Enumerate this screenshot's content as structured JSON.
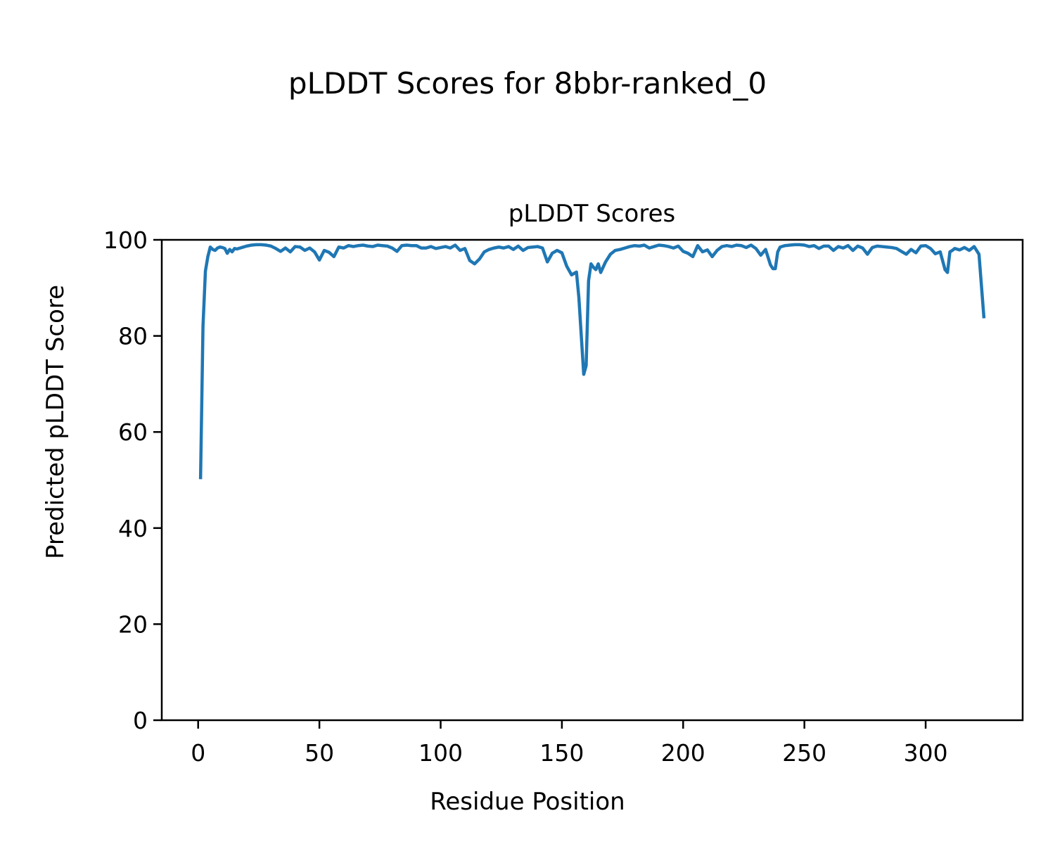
{
  "figure": {
    "suptitle": "pLDDT Scores for 8bbr-ranked_0"
  },
  "chart_data": {
    "type": "line",
    "title": "pLDDT Scores",
    "xlabel": "Residue Position",
    "ylabel": "Predicted pLDDT Score",
    "xlim": [
      -15,
      340
    ],
    "ylim": [
      0,
      100
    ],
    "xticks": [
      0,
      50,
      100,
      150,
      200,
      250,
      300
    ],
    "yticks": [
      0,
      20,
      40,
      60,
      80,
      100
    ],
    "grid": false,
    "line_color": "#1f77b4",
    "series": [
      {
        "x": [
          1,
          2,
          3,
          4,
          5,
          6,
          7,
          8,
          9,
          10,
          11,
          12,
          13,
          14,
          15,
          16,
          18,
          20,
          22,
          24,
          26,
          28,
          30,
          32,
          34,
          36,
          38,
          40,
          42,
          44,
          46,
          48,
          50,
          52,
          54,
          56,
          58,
          60,
          62,
          64,
          66,
          68,
          70,
          72,
          74,
          76,
          78,
          80,
          82,
          84,
          86,
          88,
          90,
          92,
          94,
          96,
          98,
          100,
          102,
          104,
          106,
          108,
          110,
          112,
          114,
          116,
          118,
          120,
          122,
          124,
          126,
          128,
          130,
          132,
          134,
          136,
          138,
          140,
          142,
          144,
          146,
          148,
          150,
          152,
          154,
          156,
          157,
          158,
          159,
          160,
          161,
          162,
          163,
          164,
          165,
          166,
          168,
          170,
          172,
          174,
          176,
          178,
          180,
          182,
          184,
          186,
          188,
          190,
          192,
          194,
          196,
          198,
          200,
          202,
          204,
          206,
          208,
          210,
          212,
          214,
          216,
          218,
          220,
          222,
          224,
          226,
          228,
          230,
          232,
          234,
          236,
          237,
          238,
          239,
          240,
          242,
          244,
          246,
          248,
          250,
          252,
          254,
          256,
          258,
          260,
          262,
          264,
          266,
          268,
          270,
          272,
          274,
          276,
          278,
          280,
          282,
          284,
          286,
          288,
          290,
          292,
          294,
          296,
          298,
          300,
          302,
          304,
          306,
          308,
          309,
          310,
          311,
          312,
          314,
          316,
          318,
          320,
          322,
          324
        ],
        "y": [
          50.5,
          82,
          93.5,
          96.5,
          98.5,
          98,
          97.8,
          98.3,
          98.5,
          98.4,
          98.2,
          97.2,
          98,
          97.5,
          98.2,
          98.1,
          98.4,
          98.7,
          98.9,
          99,
          99,
          98.9,
          98.7,
          98.2,
          97.6,
          98.3,
          97.5,
          98.6,
          98.5,
          97.8,
          98.3,
          97.5,
          95.8,
          97.8,
          97.4,
          96.5,
          98.5,
          98.3,
          98.8,
          98.6,
          98.8,
          98.9,
          98.7,
          98.6,
          98.9,
          98.8,
          98.7,
          98.3,
          97.6,
          98.8,
          98.9,
          98.8,
          98.8,
          98.3,
          98.3,
          98.6,
          98.2,
          98.4,
          98.6,
          98.3,
          98.9,
          97.8,
          98.2,
          95.7,
          95,
          96,
          97.5,
          98,
          98.3,
          98.5,
          98.3,
          98.6,
          98,
          98.7,
          97.8,
          98.4,
          98.5,
          98.6,
          98.3,
          95.4,
          97.2,
          97.8,
          97.3,
          94.5,
          92.7,
          93.3,
          88,
          80,
          72,
          73.8,
          91.5,
          95,
          94.3,
          93.8,
          95,
          93.2,
          95.4,
          97,
          97.8,
          98,
          98.3,
          98.6,
          98.8,
          98.7,
          98.9,
          98.3,
          98.6,
          98.9,
          98.8,
          98.6,
          98.3,
          98.7,
          97.6,
          97.2,
          96.5,
          98.8,
          97.5,
          97.9,
          96.5,
          97.8,
          98.6,
          98.8,
          98.6,
          98.9,
          98.8,
          98.4,
          98.9,
          98.2,
          96.8,
          98,
          94.8,
          94,
          94,
          97.5,
          98.5,
          98.8,
          98.9,
          99,
          99,
          98.9,
          98.6,
          98.8,
          98.2,
          98.7,
          98.7,
          97.8,
          98.6,
          98.3,
          98.8,
          97.8,
          98.7,
          98.3,
          97,
          98.4,
          98.7,
          98.6,
          98.5,
          98.4,
          98.2,
          97.6,
          97,
          98,
          97.3,
          98.7,
          98.8,
          98.2,
          97.1,
          97.5,
          93.8,
          93.2,
          97.5,
          97.8,
          98.2,
          97.9,
          98.4,
          97.8,
          98.6,
          97,
          84
        ]
      }
    ]
  }
}
